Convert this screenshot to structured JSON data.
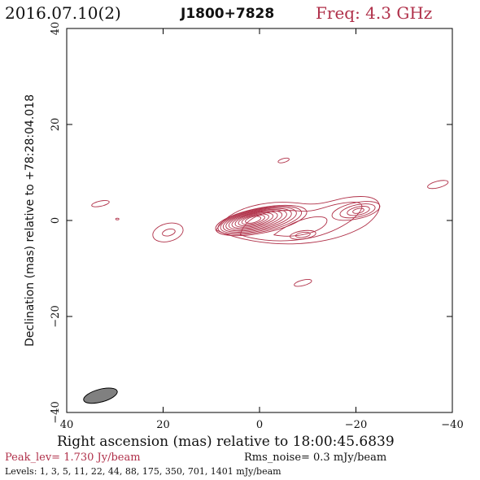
{
  "header": {
    "date": "2016.07.10(2)",
    "source": "J1800+7828",
    "freq": "Freq: 4.3 GHz"
  },
  "chart_data": {
    "type": "contour",
    "title": "J1800+7828",
    "xlabel": "Right ascension (mas) relative to 18:00:45.6839",
    "ylabel": "Declination (mas) relative to +78:28:04.018",
    "xlim": [
      40,
      -40
    ],
    "ylim": [
      -40,
      40
    ],
    "xticks": [
      40,
      20,
      0,
      -20,
      -40
    ],
    "yticks": [
      -40,
      -20,
      0,
      20,
      40
    ],
    "contour_color": "#b03048",
    "beam": {
      "x": 33,
      "y": -36.5,
      "major_mas": 6,
      "minor_mas": 2.2,
      "pa_deg": 75,
      "color": "#808080"
    },
    "components": [
      {
        "name": "core",
        "x": 0,
        "y": 0,
        "nested": 11
      },
      {
        "name": "jet-knot",
        "x": -20,
        "y": 2,
        "nested": 4
      },
      {
        "name": "knot-sw",
        "x": -9,
        "y": -3,
        "nested": 2
      },
      {
        "name": "east-blob",
        "x": 19,
        "y": -2.5,
        "nested": 2
      },
      {
        "name": "iso-east",
        "x": 33,
        "y": 3.5,
        "nested": 1
      },
      {
        "name": "iso-north",
        "x": -5,
        "y": 12.5,
        "nested": 1
      },
      {
        "name": "iso-west",
        "x": -37,
        "y": 7.5,
        "nested": 1
      },
      {
        "name": "iso-south",
        "x": -9,
        "y": -13,
        "nested": 1
      },
      {
        "name": "dot",
        "x": 29.5,
        "y": 0.3,
        "nested": 1
      }
    ]
  },
  "footer": {
    "xlabel": "Right ascension (mas) relative to 18:00:45.6839",
    "peak": "Peak_lev=  1.730 Jy/beam",
    "rms": "Rms_noise=  0.3 mJy/beam",
    "levels": "Levels:   1,    3,    5,   11,   22,   44,   88,  175,  350,  701,  1401 mJy/beam"
  }
}
